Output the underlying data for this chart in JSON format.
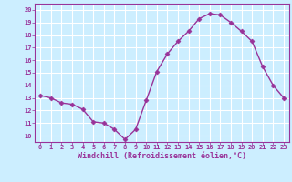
{
  "x": [
    0,
    1,
    2,
    3,
    4,
    5,
    6,
    7,
    8,
    9,
    10,
    11,
    12,
    13,
    14,
    15,
    16,
    17,
    18,
    19,
    20,
    21,
    22,
    23
  ],
  "y": [
    13.2,
    13.0,
    12.6,
    12.5,
    12.1,
    11.1,
    11.0,
    10.5,
    9.7,
    10.5,
    12.8,
    15.1,
    16.5,
    17.5,
    18.3,
    19.3,
    19.7,
    19.6,
    19.0,
    18.3,
    17.5,
    15.5,
    14.0,
    13.0
  ],
  "line_color": "#993399",
  "marker": "D",
  "marker_size": 2.5,
  "bg_color": "#cceeff",
  "grid_color": "#ffffff",
  "xlabel": "Windchill (Refroidissement éolien,°C)",
  "xlabel_color": "#993399",
  "tick_color": "#993399",
  "ylim": [
    9.5,
    20.5
  ],
  "xlim": [
    -0.5,
    23.5
  ],
  "yticks": [
    10,
    11,
    12,
    13,
    14,
    15,
    16,
    17,
    18,
    19,
    20
  ],
  "xticks": [
    0,
    1,
    2,
    3,
    4,
    5,
    6,
    7,
    8,
    9,
    10,
    11,
    12,
    13,
    14,
    15,
    16,
    17,
    18,
    19,
    20,
    21,
    22,
    23
  ],
  "tick_fontsize": 5.0,
  "xlabel_fontsize": 6.0,
  "linewidth": 1.0,
  "spine_color": "#993399"
}
